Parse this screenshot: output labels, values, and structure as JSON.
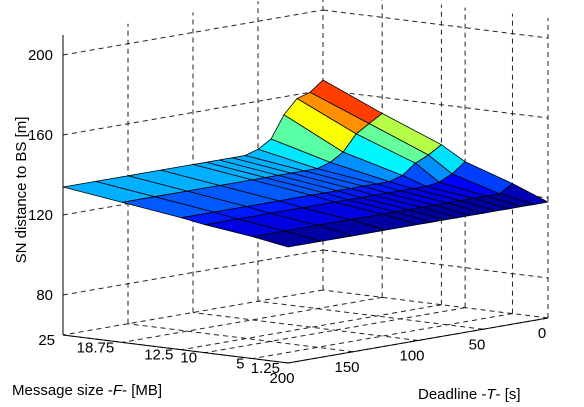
{
  "chart_data": {
    "type": "surface",
    "title": "",
    "axes": {
      "x": {
        "label": "Deadline -T- [s]",
        "range": [
          0,
          200
        ],
        "ticks": [
          "0",
          "50",
          "100",
          "150",
          "200"
        ]
      },
      "y": {
        "label": "Message size -F- [MB]",
        "range": [
          1.25,
          25
        ],
        "ticks": [
          "1.25",
          "5",
          "10",
          "12.5",
          "18.75",
          "25"
        ]
      },
      "z": {
        "label": "SN distance to BS [m]",
        "range": [
          60,
          210
        ],
        "ticks": [
          "80",
          "120",
          "160",
          "200"
        ]
      }
    },
    "grid": true,
    "colormap": "jet",
    "deadline": [
      0,
      10,
      20,
      30,
      40,
      50,
      60,
      70,
      80,
      90,
      100,
      125,
      150,
      175,
      200
    ],
    "message_size": [
      1.25,
      5,
      10,
      12.5,
      18.75,
      25
    ],
    "distance": [
      [
        118,
        118,
        118,
        118,
        118,
        118,
        118,
        118,
        118,
        118,
        118,
        118,
        118,
        118,
        118
      ],
      [
        125,
        121,
        121,
        121,
        121,
        121,
        121,
        121,
        121,
        121,
        121,
        121,
        121,
        121,
        121
      ],
      [
        133,
        128,
        125,
        124,
        124,
        124,
        124,
        124,
        124,
        124,
        124,
        124,
        124,
        124,
        124
      ],
      [
        140,
        136,
        133,
        128,
        126,
        126,
        126,
        126,
        126,
        126,
        126,
        126,
        126,
        126,
        126
      ],
      [
        152,
        148,
        144,
        136,
        132,
        130,
        130,
        130,
        130,
        130,
        130,
        130,
        130,
        130,
        130
      ],
      [
        165,
        160,
        158,
        151,
        140,
        136,
        134,
        134,
        134,
        134,
        134,
        134,
        134,
        134,
        134
      ]
    ]
  },
  "z_label": "SN distance to BS [m]",
  "x_label_prefix": "Deadline -",
  "x_label_var": "T",
  "x_label_suffix": "- [s]",
  "y_label_prefix": "Message size -",
  "y_label_var": "F",
  "y_label_suffix": "- [MB]"
}
